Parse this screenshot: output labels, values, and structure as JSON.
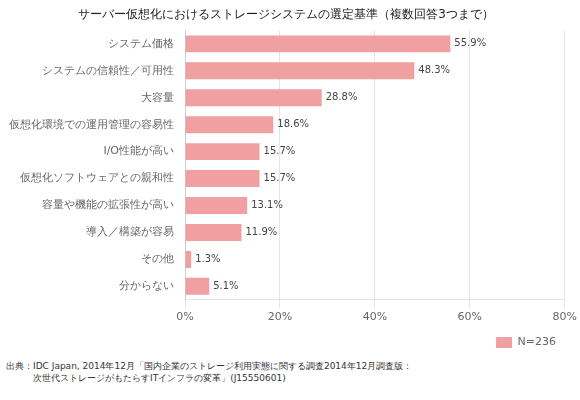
{
  "chart_data": {
    "type": "bar",
    "title": "サーバー仮想化におけるストレージシステムの選定基準（複数回答3つまで）",
    "orientation": "horizontal",
    "categories": [
      "システム価格",
      "システムの信頼性／可用性",
      "大容量",
      "仮想化環境での運用管理の容易性",
      "I/O性能が高い",
      "仮想化ソフトウェアとの親和性",
      "容量や機能の拡張性が高い",
      "導入／構築が容易",
      "その他",
      "分からない"
    ],
    "series": [
      {
        "name": "N=236",
        "color": "#f0a0a0",
        "values": [
          55.9,
          48.3,
          28.8,
          18.6,
          15.7,
          15.7,
          13.1,
          11.9,
          1.3,
          5.1
        ],
        "value_labels": [
          "55.9%",
          "48.3%",
          "28.8%",
          "18.6%",
          "15.7%",
          "15.7%",
          "13.1%",
          "11.9%",
          "1.3%",
          "5.1%"
        ]
      }
    ],
    "data_labels": true,
    "xlim": [
      0,
      80
    ],
    "xticks": [
      {
        "value": 0,
        "label": "0%"
      },
      {
        "value": 20,
        "label": "20%"
      },
      {
        "value": 40,
        "label": "40%"
      },
      {
        "value": 60,
        "label": "60%"
      },
      {
        "value": 80,
        "label": "80%"
      }
    ],
    "grid": true,
    "legend": "lower right",
    "annotations": [
      "出典：IDC Japan, 2014年12月「国内企業のストレージ利用実態に関する調査2014年12月調査版：",
      "　　　次世代ストレージがもたらすITインフラの変革」(J15550601)"
    ]
  }
}
